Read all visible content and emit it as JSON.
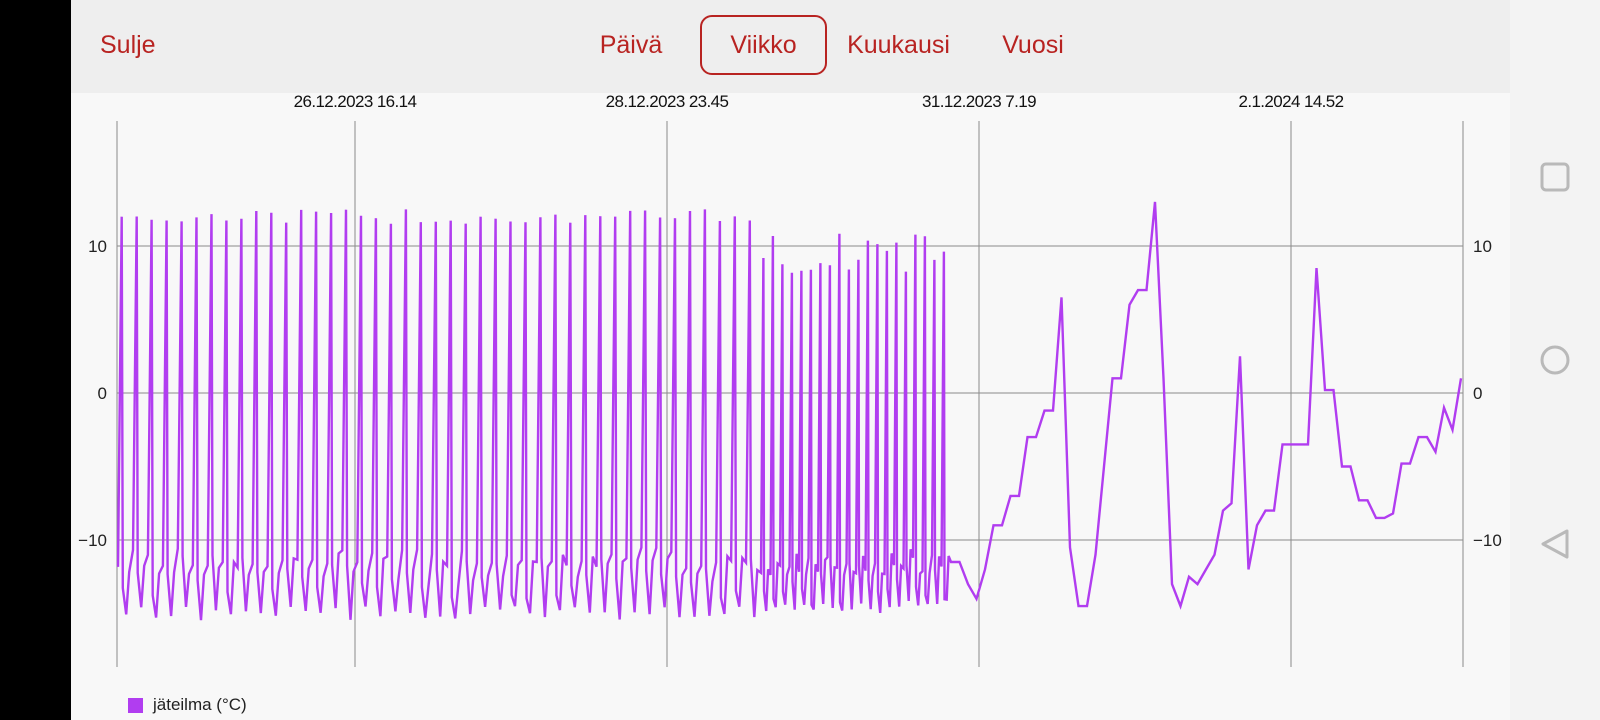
{
  "header": {
    "close_label": "Sulje",
    "tabs": [
      {
        "label": "Päivä",
        "selected": false
      },
      {
        "label": "Viikko",
        "selected": true
      },
      {
        "label": "Kuukausi",
        "selected": false
      },
      {
        "label": "Vuosi",
        "selected": false
      }
    ]
  },
  "colors": {
    "accent": "#b82321",
    "series": "#b13df0",
    "grid": "#8a8a8a"
  },
  "chart_data": {
    "type": "line",
    "x_tick_labels": [
      "26.12.2023 16.14",
      "28.12.2023 23.45",
      "31.12.2023 7.19",
      "2.1.2024 14.52"
    ],
    "y_ticks": [
      10,
      0,
      -10
    ],
    "y_tick_labels": [
      "10",
      "0",
      "-10"
    ],
    "ylim": [
      -19,
      17.5
    ],
    "grid": true,
    "legend_position": "bottom-left",
    "series": [
      {
        "name": "jäteilma (°C)",
        "segments": [
          {
            "kind": "spikes",
            "count": 43,
            "high": [
              11.5,
              12.5
            ],
            "low": [
              -14.5,
              -15.5
            ],
            "mid": -12
          },
          {
            "kind": "spikes",
            "count": 20,
            "high": [
              8,
              11
            ],
            "low": [
              -14,
              -15
            ],
            "mid": -12.5
          },
          {
            "kind": "path",
            "y": [
              -11.5,
              -11.5,
              -13,
              -14,
              -12,
              -9,
              -9,
              -7,
              -7,
              -3,
              -3,
              -1.2,
              -1.2,
              6.5,
              -10.5,
              -14.5,
              -14.5,
              -11,
              -5,
              1,
              1,
              6,
              7,
              7,
              13,
              1,
              -13,
              -14.5,
              -12.5,
              -13,
              -12,
              -11,
              -8,
              -7.5,
              2.5,
              -12,
              -9,
              -8,
              -8,
              -3.5,
              -3.5,
              -3.5,
              -3.5,
              8.5,
              0.2,
              0.2,
              -5,
              -5,
              -7.3,
              -7.3,
              -8.5,
              -8.5,
              -8.2,
              -4.8,
              -4.8,
              -3,
              -3,
              -4,
              -1,
              -2.5,
              1
            ]
          }
        ]
      }
    ]
  },
  "legend": {
    "label": "jäteilma (°C)"
  },
  "nav": {
    "buttons": [
      "recents-icon",
      "home-icon",
      "back-icon"
    ]
  }
}
